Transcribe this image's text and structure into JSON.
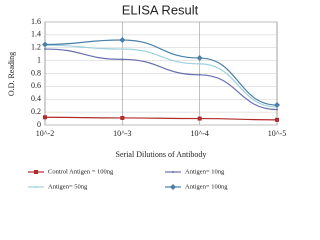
{
  "chart_data": {
    "type": "line",
    "title": "ELISA Result",
    "x_label": "Serial Dilutions  of Antibody",
    "y_label": "O.D. Reading",
    "categories": [
      "10^-2",
      "10^-3",
      "10^-4",
      "10^-5"
    ],
    "series": [
      {
        "name": "Control Antigen = 100ng",
        "color": "#b22a2a",
        "marker": "square",
        "values": [
          0.12,
          0.11,
          0.1,
          0.08
        ]
      },
      {
        "name": "Antigen= 10ng",
        "color": "#6a6fb0",
        "marker": "none",
        "values": [
          1.18,
          1.02,
          0.78,
          0.24
        ]
      },
      {
        "name": "Antigen= 50ng",
        "color": "#9ed1de",
        "marker": "none",
        "values": [
          1.24,
          1.18,
          0.95,
          0.28
        ]
      },
      {
        "name": "Antigen= 100ng",
        "color": "#4a7fa8",
        "marker": "diamond",
        "values": [
          1.25,
          1.32,
          1.04,
          0.31
        ]
      }
    ],
    "ylim": [
      0,
      1.6
    ],
    "yticks": [
      0,
      0.2,
      0.4,
      0.6,
      0.8,
      1,
      1.2,
      1.4,
      1.6
    ],
    "grid": true
  }
}
